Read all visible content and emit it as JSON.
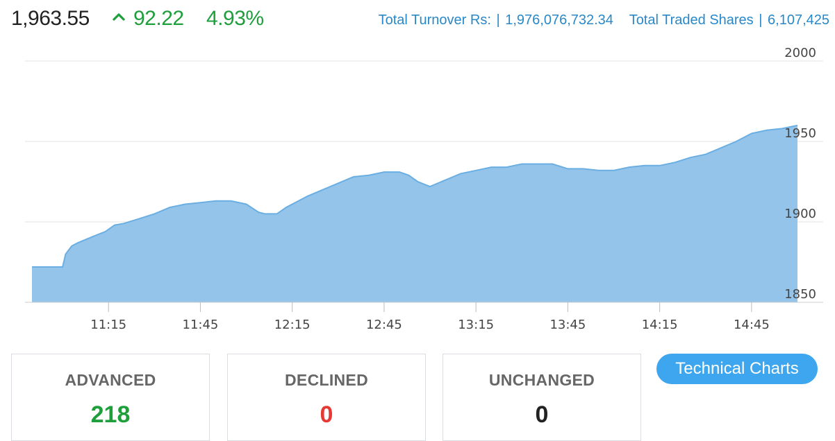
{
  "index": {
    "value": "1,963.55",
    "change_points": "92.22",
    "change_percent": "4.93%",
    "direction_icon": "caret-up-icon"
  },
  "stats": {
    "turnover_label": "Total Turnover Rs:",
    "turnover_value": "1,976,076,732.34",
    "shares_label": "Total Traded Shares",
    "shares_value": "6,107,425",
    "separator": "|"
  },
  "breadth": {
    "advanced_label": "ADVANCED",
    "advanced_value": "218",
    "declined_label": "DECLINED",
    "declined_value": "0",
    "unchanged_label": "UNCHANGED",
    "unchanged_value": "0"
  },
  "technical_charts_label": "Technical Charts",
  "colors": {
    "up": "#1f9e3c",
    "down": "#e53935",
    "neutral": "#222222",
    "area_fill": "#94c4ea",
    "area_stroke": "#6aaee2",
    "link": "#2a88c7",
    "button": "#3ea6ee"
  },
  "chart_data": {
    "type": "area",
    "x_tick_labels": [
      "11:15",
      "11:45",
      "12:15",
      "12:45",
      "13:15",
      "13:45",
      "14:15",
      "14:45"
    ],
    "x_tick_times": [
      "11:15",
      "11:45",
      "12:15",
      "12:45",
      "13:15",
      "13:45",
      "14:15",
      "14:45"
    ],
    "y_ticks": [
      1850,
      1900,
      1950,
      2000
    ],
    "ylim": [
      1850,
      2000
    ],
    "xlim": [
      "10:50",
      "15:00"
    ],
    "grid": "horizontal",
    "series": [
      {
        "x": [
          "10:50",
          "11:00",
          "11:01",
          "11:03",
          "11:05",
          "11:10",
          "11:14",
          "11:17",
          "11:20",
          "11:25",
          "11:30",
          "11:35",
          "11:40",
          "11:45",
          "11:50",
          "11:55",
          "12:00",
          "12:04",
          "12:06",
          "12:10",
          "12:13",
          "12:20",
          "12:25",
          "12:30",
          "12:35",
          "12:40",
          "12:45",
          "12:50",
          "12:53",
          "12:56",
          "13:00",
          "13:05",
          "13:10",
          "13:15",
          "13:20",
          "13:25",
          "13:30",
          "13:35",
          "13:40",
          "13:45",
          "13:50",
          "13:55",
          "14:00",
          "14:05",
          "14:10",
          "14:15",
          "14:20",
          "14:25",
          "14:30",
          "14:35",
          "14:40",
          "14:45",
          "14:50",
          "14:55",
          "15:00"
        ],
        "y": [
          1872,
          1872,
          1880,
          1885,
          1887,
          1891,
          1894,
          1898,
          1899,
          1902,
          1905,
          1909,
          1911,
          1912,
          1913,
          1913,
          1911,
          1906,
          1905,
          1905,
          1909,
          1916,
          1920,
          1924,
          1928,
          1929,
          1931,
          1931,
          1929,
          1925,
          1922,
          1926,
          1930,
          1932,
          1934,
          1934,
          1936,
          1936,
          1936,
          1933,
          1933,
          1932,
          1932,
          1934,
          1935,
          1935,
          1937,
          1940,
          1942,
          1946,
          1950,
          1955,
          1957,
          1958,
          1960
        ]
      }
    ]
  }
}
